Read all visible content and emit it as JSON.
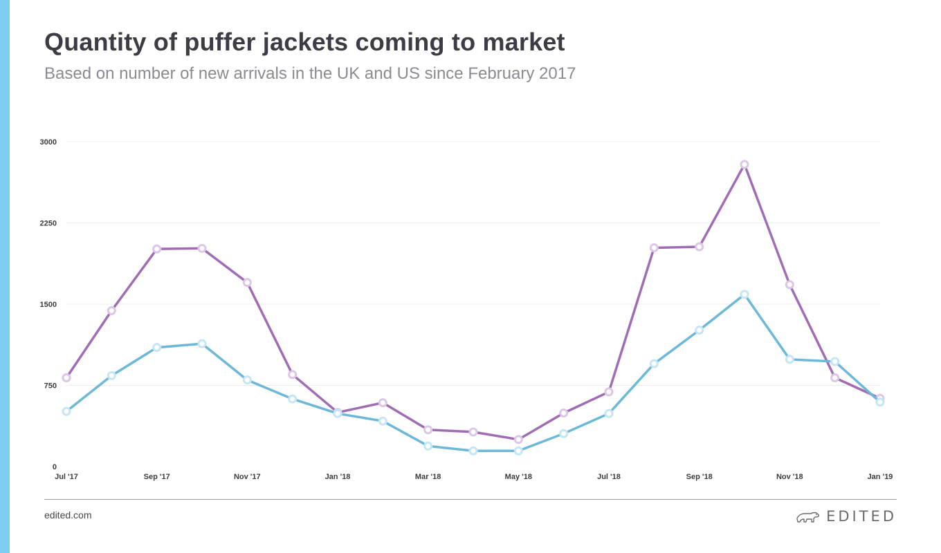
{
  "header": {
    "title": "Quantity of puffer jackets coming to market",
    "subtitle": "Based on number of new arrivals in the UK and US since February 2017"
  },
  "footer": {
    "site": "edited.com",
    "brand": "EDITED",
    "brand_icon": "polar-bear-logo"
  },
  "colors": {
    "accent": "#7fcdf0",
    "series_purple": "#a06cb4",
    "series_blue": "#6cb8d8",
    "marker_purple": "#dcc6e6",
    "marker_blue": "#c4e6f4"
  },
  "chart_data": {
    "type": "line",
    "x": [
      "Jul '17",
      "Aug '17",
      "Sep '17",
      "Oct '17",
      "Nov '17",
      "Dec '17",
      "Jan '18",
      "Feb '18",
      "Mar '18",
      "Apr '18",
      "May '18",
      "Jun '18",
      "Jul '18",
      "Aug '18",
      "Sep '18",
      "Oct '18",
      "Nov '18",
      "Dec '18",
      "Jan '19"
    ],
    "x_tick_labels": [
      "Jul '17",
      "",
      "Sep '17",
      "",
      "Nov '17",
      "",
      "Jan '18",
      "",
      "Mar '18",
      "",
      "May '18",
      "",
      "Jul '18",
      "",
      "Sep '18",
      "",
      "Nov '18",
      "",
      "Jan '19"
    ],
    "series": [
      {
        "color": "#a06cb4",
        "values": [
          820,
          1440,
          2010,
          2015,
          1700,
          850,
          500,
          590,
          340,
          320,
          250,
          495,
          690,
          2020,
          2030,
          2790,
          1680,
          820,
          630
        ]
      },
      {
        "color": "#6cb8d8",
        "values": [
          510,
          840,
          1100,
          1135,
          800,
          625,
          490,
          420,
          190,
          145,
          145,
          305,
          490,
          950,
          1260,
          1590,
          990,
          970,
          595
        ]
      }
    ],
    "y_ticks": [
      0,
      750,
      1500,
      2250,
      3000
    ],
    "ylim": [
      0,
      3000
    ],
    "xlabel": "",
    "ylabel": "",
    "grid": true,
    "legend": "none"
  }
}
